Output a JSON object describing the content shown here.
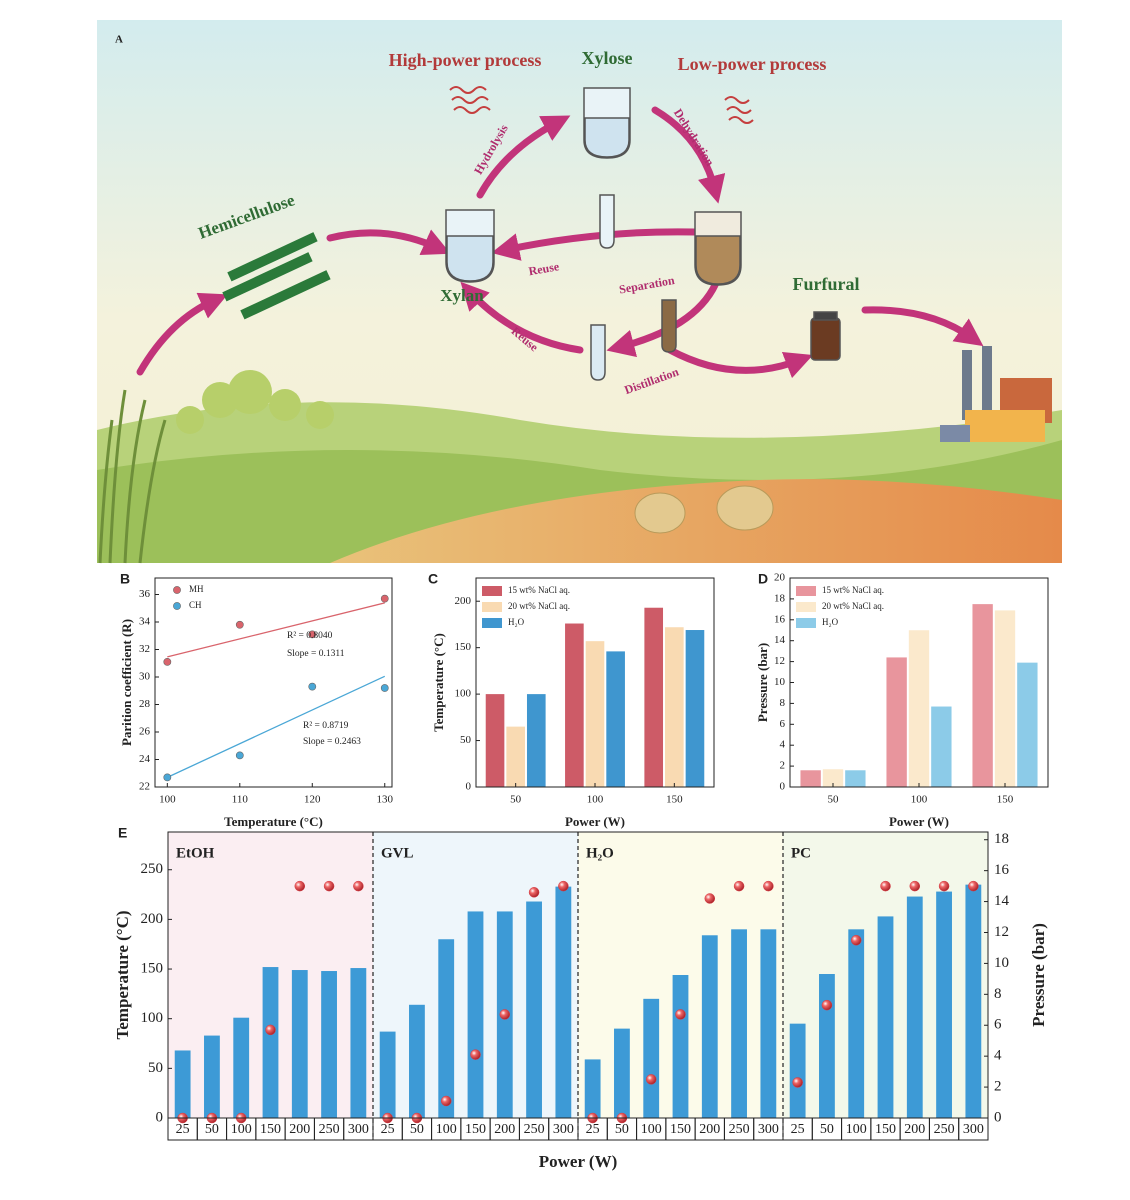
{
  "diagram": {
    "panel_label": "A",
    "high_power": "High-power process",
    "xylose": "Xylose",
    "low_power": "Low-power process",
    "hydrolysis": "Hydrolysis",
    "dehydration": "Dehydration",
    "hemicellulose": "Hemicellulose",
    "reuse_upper": "Reuse",
    "separation": "Separation",
    "xylan": "Xylan",
    "reuse_lower": "Reuse",
    "distillation": "Distillation",
    "furfural": "Furfural"
  },
  "chart_data": [
    {
      "type": "scatter",
      "label": "B",
      "x_label": "Temperature (°C)",
      "y_label": "Parition coefficient (R)",
      "xlim": [
        98.3,
        131
      ],
      "xticks": [
        100,
        110,
        120,
        130
      ],
      "ylim": [
        22,
        37.2
      ],
      "yticks": [
        22,
        24,
        26,
        28,
        30,
        32,
        34,
        36
      ],
      "fit_lines": true,
      "legend": "upper left",
      "series": [
        {
          "name": "MH",
          "color": "#d9646c",
          "x": [
            100,
            110,
            120,
            130
          ],
          "values": [
            31.1,
            33.8,
            33.1,
            35.7
          ]
        },
        {
          "name": "CH",
          "color": "#4aa7d6",
          "x": [
            100,
            110,
            120,
            130
          ],
          "values": [
            22.7,
            24.3,
            29.3,
            29.2
          ]
        }
      ],
      "annotations": [
        "R² = 0.8040",
        "Slope = 0.1311",
        "R² = 0.8719",
        "Slope = 0.2463"
      ]
    },
    {
      "type": "bar",
      "label": "C",
      "x_label": "Power (W)",
      "y_label": "Temperature (°C)",
      "categories": [
        "50",
        "100",
        "150"
      ],
      "ylim": [
        0,
        225
      ],
      "yticks": [
        0,
        50,
        100,
        150,
        200
      ],
      "legend": "upper left",
      "series": [
        {
          "name": "15 wt% NaCl aq.",
          "color": "#cd5b67",
          "values": [
            100,
            176,
            193
          ]
        },
        {
          "name": "20 wt% NaCl aq.",
          "color": "#f9dab2",
          "values": [
            65,
            157,
            172
          ]
        },
        {
          "name": "H₂O",
          "color": "#3f96cf",
          "values": [
            100,
            146,
            169
          ]
        }
      ]
    },
    {
      "type": "bar",
      "label": "D",
      "x_label": "Power (W)",
      "y_label": "Pressure (bar)",
      "categories": [
        "50",
        "100",
        "150"
      ],
      "ylim": [
        0,
        20
      ],
      "yticks": [
        0,
        2,
        4,
        6,
        8,
        10,
        12,
        14,
        16,
        18,
        20
      ],
      "legend": "upper left",
      "series": [
        {
          "name": "15 wt% NaCl aq.",
          "color": "#e8959d",
          "values": [
            1.6,
            12.4,
            17.5
          ]
        },
        {
          "name": "20 wt% NaCl aq.",
          "color": "#fbe9cc",
          "values": [
            1.7,
            15.0,
            16.9
          ]
        },
        {
          "name": "H₂O",
          "color": "#8ccbe8",
          "values": [
            1.6,
            7.7,
            11.9
          ]
        }
      ]
    },
    {
      "type": "bar_scatter",
      "label": "E",
      "x_label": "Power (W)",
      "y_label": "Temperature (°C)",
      "y2_label": "Pressure (bar)",
      "ylim": [
        0,
        288
      ],
      "yticks": [
        0,
        50,
        100,
        150,
        200,
        250
      ],
      "y2lim": [
        0,
        18.5
      ],
      "y2ticks": [
        0,
        2,
        4,
        6,
        8,
        10,
        12,
        14,
        16,
        18
      ],
      "groups": [
        {
          "name": "EtOH",
          "background": "#fbeef2",
          "categories": [
            "25",
            "50",
            "100",
            "150",
            "200",
            "250",
            "300"
          ]
        },
        {
          "name": "GVL",
          "background": "#eef6fb",
          "categories": [
            "25",
            "50",
            "100",
            "150",
            "200",
            "250",
            "300"
          ]
        },
        {
          "name": "H₂O",
          "background": "#fcfbea",
          "categories": [
            "25",
            "50",
            "100",
            "150",
            "200",
            "250",
            "300"
          ]
        },
        {
          "name": "PC",
          "background": "#f3f8ea",
          "categories": [
            "25",
            "50",
            "100",
            "150",
            "200",
            "250",
            "300"
          ]
        }
      ],
      "series": [
        {
          "color": "#3d9ad6",
          "values": [
            68,
            83,
            101,
            152,
            149,
            148,
            151,
            87,
            114,
            180,
            208,
            208,
            218,
            233,
            59,
            90,
            120,
            144,
            184,
            190,
            190,
            95,
            145,
            190,
            203,
            223,
            228,
            235
          ]
        },
        {
          "color": "#d63c45",
          "axis": "y2",
          "values": [
            0,
            0,
            0,
            5.7,
            15,
            15,
            15,
            0,
            0,
            1.1,
            4.1,
            6.7,
            14.6,
            15,
            0,
            0,
            2.5,
            6.7,
            14.2,
            15,
            15,
            2.3,
            7.3,
            11.5,
            15,
            15,
            15,
            15
          ]
        }
      ]
    }
  ]
}
